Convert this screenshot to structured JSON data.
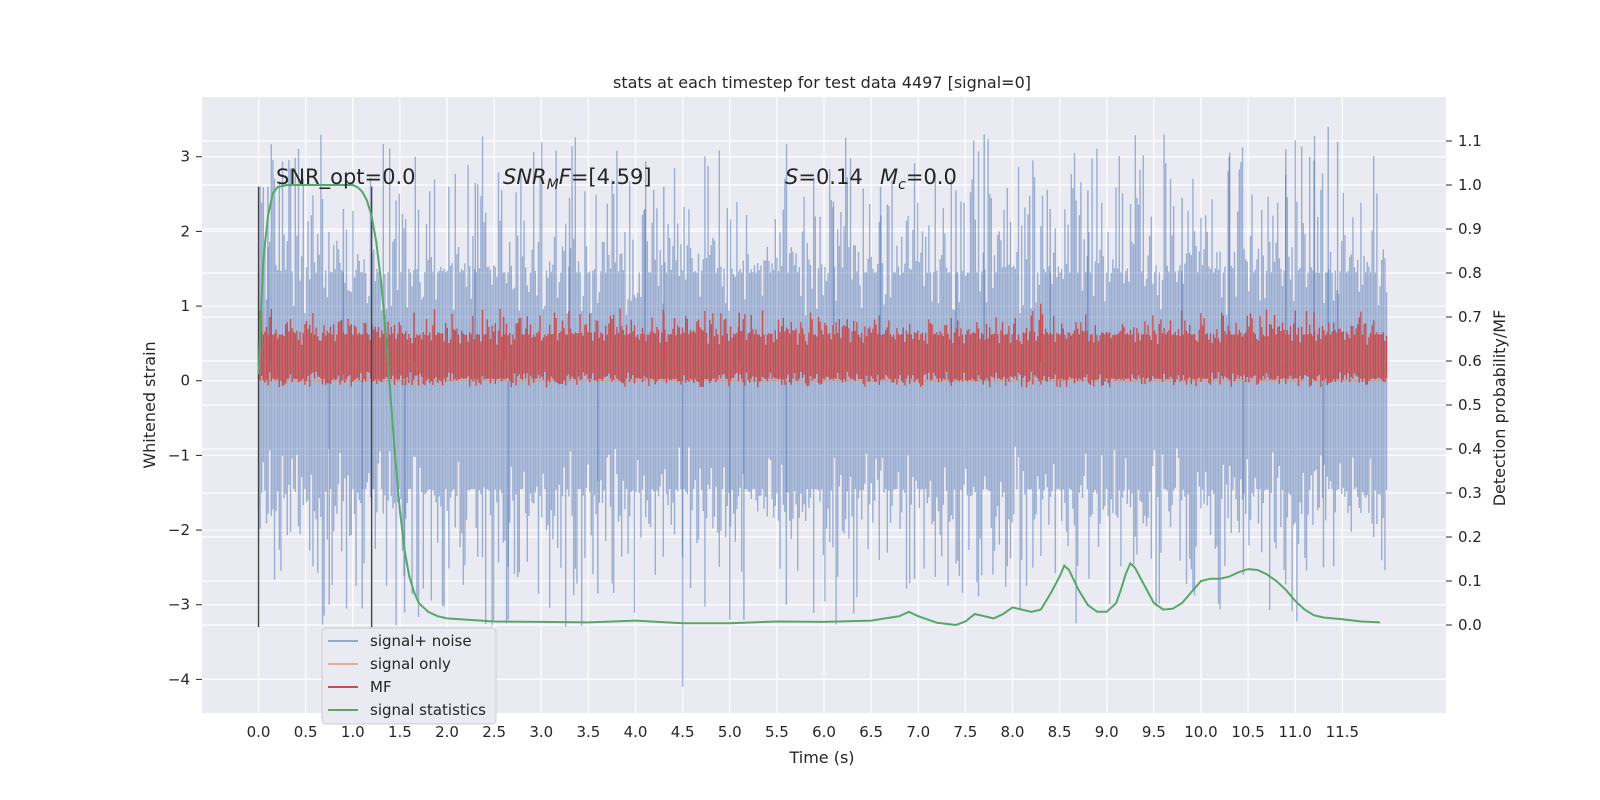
{
  "chart_data": {
    "type": "line",
    "title": "stats at each timestep for test data 4497 [signal=0]",
    "xlabel": "Time (s)",
    "ylabel": "Whitened strain",
    "y2label": "Detection probability/MF",
    "xlim": [
      -0.6,
      12.6
    ],
    "ylim": [
      -4.45,
      3.8
    ],
    "y2lim": [
      -0.2,
      1.2
    ],
    "x_ticks": [
      0.0,
      0.5,
      1.0,
      1.5,
      2.0,
      2.5,
      3.0,
      3.5,
      4.0,
      4.5,
      5.0,
      5.5,
      6.0,
      6.5,
      7.0,
      7.5,
      8.0,
      8.5,
      9.0,
      9.5,
      10.0,
      10.5,
      11.0,
      11.5
    ],
    "x_tick_labels": [
      "0.0",
      "0.5",
      "1.0",
      "1.5",
      "2.0",
      "2.5",
      "3.0",
      "3.5",
      "4.0",
      "4.5",
      "5.0",
      "5.5",
      "6.0",
      "6.5",
      "7.0",
      "7.5",
      "8.0",
      "8.5",
      "9.0",
      "9.5",
      "10.0",
      "10.5",
      "11.0",
      "11.5"
    ],
    "y_ticks": [
      3,
      2,
      1,
      0,
      -1,
      -2,
      -3,
      -4
    ],
    "y_tick_labels": [
      "3",
      "2",
      "1",
      "0",
      "−1",
      "−2",
      "−3",
      "−4"
    ],
    "y2_ticks": [
      1.1,
      1.0,
      0.9,
      0.8,
      0.7,
      0.6,
      0.5,
      0.4,
      0.3,
      0.2,
      0.1,
      0.0
    ],
    "y2_tick_labels": [
      "1.1",
      "1.0",
      "0.9",
      "0.8",
      "0.7",
      "0.6",
      "0.5",
      "0.4",
      "0.3",
      "0.2",
      "0.1",
      "0.0"
    ],
    "grid": true,
    "legend": {
      "placement": "lower-left",
      "entries": [
        {
          "label": "signal+ noise",
          "color": "#4c72b0"
        },
        {
          "label": "signal only",
          "color": "#dd8452"
        },
        {
          "label": "MF",
          "color": "#c44e52"
        },
        {
          "label": "signal statistics",
          "color": "#55a868"
        }
      ]
    },
    "annotations": {
      "snr_opt": "SNR_opt=0.0",
      "snr_mf_symbol": "SNR",
      "snr_mf_sub": "M",
      "snr_mf_rest": "F=[4.59]",
      "s_symbol": "S",
      "s_value": "=0.14",
      "mc_symbol": "M",
      "mc_sub": "c",
      "mc_value": "=0.0"
    },
    "markers": [
      {
        "x": 0.0,
        "y_top": 2.6,
        "y_bottom": -3.3
      },
      {
        "x": 1.2,
        "y_top": 2.6,
        "y_bottom": -3.3
      }
    ],
    "series": [
      {
        "name": "signal+ noise",
        "axis": "left",
        "color": "#4c72b0",
        "kind": "noise-band",
        "x_range": [
          0.0,
          11.98
        ],
        "typical_range": [
          -1.45,
          1.45
        ],
        "peak_range": [
          -3.3,
          3.3
        ],
        "spikes": [
          {
            "x": 0.1,
            "y": 2.6
          },
          {
            "x": 0.75,
            "y": -3.0
          },
          {
            "x": 0.9,
            "y": 2.3
          },
          {
            "x": 1.1,
            "y": -3.05
          },
          {
            "x": 1.55,
            "y": -3.1
          },
          {
            "x": 2.3,
            "y": 2.65
          },
          {
            "x": 2.65,
            "y": -3.2
          },
          {
            "x": 3.3,
            "y": 2.45
          },
          {
            "x": 3.6,
            "y": -2.85
          },
          {
            "x": 4.1,
            "y": 2.3
          },
          {
            "x": 4.5,
            "y": -4.1
          },
          {
            "x": 4.3,
            "y": 2.6
          },
          {
            "x": 5.0,
            "y": -3.2
          },
          {
            "x": 5.15,
            "y": -3.2
          },
          {
            "x": 5.6,
            "y": -3.0
          },
          {
            "x": 6.1,
            "y": 2.4
          },
          {
            "x": 6.6,
            "y": 2.6
          },
          {
            "x": 7.4,
            "y": 2.55
          },
          {
            "x": 7.7,
            "y": 3.3
          },
          {
            "x": 8.4,
            "y": 2.3
          },
          {
            "x": 8.8,
            "y": 2.55
          },
          {
            "x": 9.8,
            "y": 2.45
          },
          {
            "x": 10.3,
            "y": 3.0
          },
          {
            "x": 10.9,
            "y": 3.1
          },
          {
            "x": 11.2,
            "y": 2.95
          },
          {
            "x": 11.35,
            "y": 3.4
          },
          {
            "x": 11.45,
            "y": 3.2
          },
          {
            "x": 10.45,
            "y": -2.6
          },
          {
            "x": 11.3,
            "y": -2.5
          }
        ]
      },
      {
        "name": "signal only",
        "axis": "left",
        "color": "#dd8452",
        "x": [
          0.0,
          11.98
        ],
        "y": [
          0.0,
          0.0
        ]
      },
      {
        "name": "MF",
        "axis": "right",
        "color": "#c44e52",
        "kind": "noise-band",
        "x_range": [
          0.0,
          11.98
        ],
        "center": 0.6,
        "typical_range": [
          0.56,
          0.66
        ],
        "peak_range": [
          0.54,
          0.72
        ],
        "spikes": [
          {
            "x": 0.12,
            "y": 0.7
          },
          {
            "x": 1.65,
            "y": 0.71
          },
          {
            "x": 2.6,
            "y": 0.7
          },
          {
            "x": 4.3,
            "y": 0.71
          },
          {
            "x": 5.1,
            "y": 0.71
          },
          {
            "x": 8.3,
            "y": 0.73
          },
          {
            "x": 11.2,
            "y": 0.71
          }
        ]
      },
      {
        "name": "signal statistics",
        "axis": "right",
        "color": "#55a868",
        "x": [
          0.0,
          0.05,
          0.1,
          0.15,
          0.2,
          0.3,
          0.5,
          0.7,
          0.9,
          1.0,
          1.05,
          1.1,
          1.15,
          1.2,
          1.25,
          1.3,
          1.35,
          1.4,
          1.45,
          1.5,
          1.55,
          1.6,
          1.65,
          1.7,
          1.8,
          1.9,
          2.0,
          2.5,
          3.0,
          3.5,
          4.0,
          4.5,
          5.0,
          5.5,
          6.0,
          6.5,
          6.8,
          6.9,
          7.0,
          7.2,
          7.4,
          7.5,
          7.6,
          7.7,
          7.8,
          7.9,
          8.0,
          8.1,
          8.2,
          8.3,
          8.4,
          8.5,
          8.55,
          8.6,
          8.7,
          8.8,
          8.9,
          9.0,
          9.1,
          9.15,
          9.2,
          9.25,
          9.3,
          9.4,
          9.5,
          9.6,
          9.7,
          9.8,
          9.9,
          10.0,
          10.1,
          10.2,
          10.3,
          10.4,
          10.5,
          10.6,
          10.7,
          10.8,
          10.9,
          11.0,
          11.1,
          11.2,
          11.3,
          11.5,
          11.7,
          11.9
        ],
        "y": [
          0.57,
          0.83,
          0.93,
          0.98,
          0.995,
          1.0,
          1.0,
          1.0,
          1.0,
          1.0,
          0.995,
          0.985,
          0.965,
          0.93,
          0.87,
          0.78,
          0.66,
          0.52,
          0.38,
          0.26,
          0.17,
          0.11,
          0.075,
          0.05,
          0.03,
          0.02,
          0.015,
          0.008,
          0.007,
          0.006,
          0.01,
          0.004,
          0.004,
          0.008,
          0.007,
          0.01,
          0.02,
          0.03,
          0.02,
          0.005,
          0.0,
          0.008,
          0.025,
          0.02,
          0.015,
          0.025,
          0.04,
          0.035,
          0.03,
          0.035,
          0.07,
          0.11,
          0.135,
          0.125,
          0.08,
          0.045,
          0.03,
          0.03,
          0.05,
          0.08,
          0.115,
          0.14,
          0.13,
          0.09,
          0.05,
          0.035,
          0.037,
          0.05,
          0.075,
          0.1,
          0.105,
          0.105,
          0.11,
          0.12,
          0.127,
          0.125,
          0.115,
          0.1,
          0.08,
          0.055,
          0.035,
          0.022,
          0.017,
          0.013,
          0.008,
          0.006
        ]
      }
    ]
  }
}
